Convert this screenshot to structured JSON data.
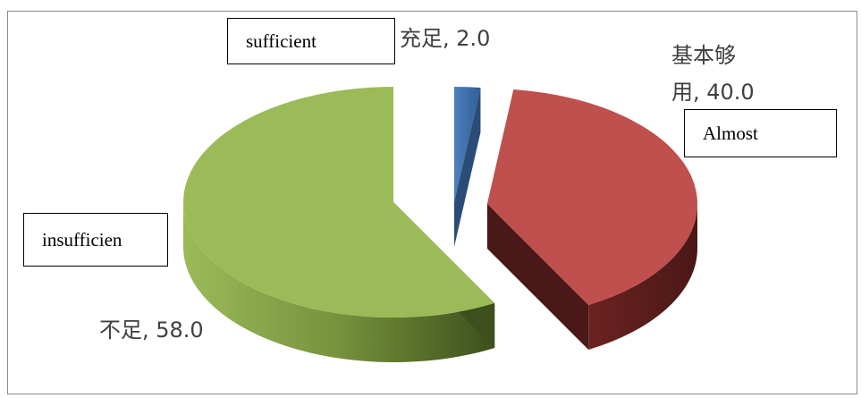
{
  "chart_data": {
    "type": "pie",
    "style": "3d-exploded",
    "slices": [
      {
        "label": "充足",
        "value": 2.0,
        "display": "充足, 2.0",
        "color": "#4f81bd"
      },
      {
        "label": "基本够用",
        "value": 40.0,
        "display_line1": "基本够",
        "display_line2": "用, 40.0",
        "color": "#c0504d"
      },
      {
        "label": "不足",
        "value": 58.0,
        "display": "不足, 58.0",
        "color": "#9bbb59"
      }
    ]
  },
  "annotations": {
    "sufficient": "sufficient",
    "almost": "Almost",
    "insufficient": "insufficien"
  }
}
